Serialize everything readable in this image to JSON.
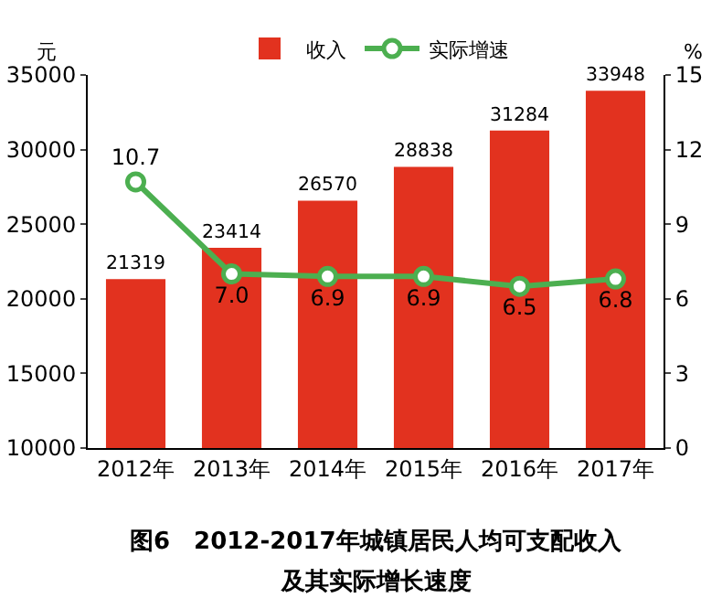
{
  "chart_data": {
    "type": "bar",
    "title": "图6　2012-2017年城镇居民人均可支配收入",
    "subtitle": "及其实际增长速度",
    "categories": [
      "2012年",
      "2013年",
      "2014年",
      "2015年",
      "2016年",
      "2017年"
    ],
    "series": [
      {
        "name": "收入",
        "color": "#e2321f",
        "values": [
          21319,
          23414,
          26570,
          28838,
          31284,
          33948
        ],
        "value_labels": [
          "21319",
          "23414",
          "26570",
          "28838",
          "31284",
          "33948"
        ]
      },
      {
        "name": "实际增速",
        "type": "line",
        "axis": "y2",
        "color": "#4caf50",
        "marker": "circle",
        "values": [
          10.7,
          7.0,
          6.9,
          6.9,
          6.5,
          6.8
        ],
        "value_labels": [
          "10.7",
          "7.0",
          "6.9",
          "6.9",
          "6.5",
          "6.8"
        ]
      }
    ],
    "ylabel": "元",
    "y2label": "%",
    "ylim": [
      10000,
      35000
    ],
    "yticks": [
      10000,
      15000,
      20000,
      25000,
      30000,
      35000
    ],
    "y2lim": [
      0,
      15
    ],
    "y2ticks": [
      0,
      3,
      6,
      9,
      12,
      15
    ],
    "grid": false,
    "legend": "top"
  }
}
